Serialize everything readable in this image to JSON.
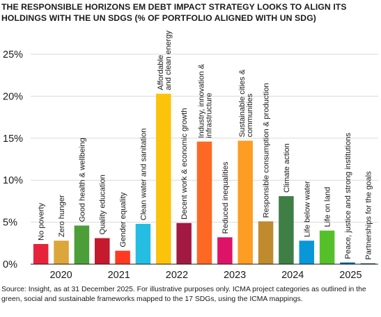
{
  "title": "THE RESPONSIBLE HORIZONS EM DEBT IMPACT STRATEGY LOOKS TO ALIGN ITS HOLDINGS WITH THE UN SDGS (% OF PORTFOLIO ALIGNED WITH UN SDG)",
  "source": "Source: Insight, as at 31 December 2025. For illustrative purposes only. ICMA project categories as outlined in the green, social and sustainable frameworks mapped to the 17 SDGs, using the ICMA mappings.",
  "chart_data": {
    "type": "bar",
    "ylim": [
      0,
      25
    ],
    "yticks": [
      0,
      5,
      10,
      15,
      20,
      25
    ],
    "ytick_labels": [
      "0%",
      "5%",
      "10%",
      "15%",
      "20%",
      "25%"
    ],
    "grid": true,
    "categories": [
      "No poverty",
      "Zero hunger",
      "Good health & wellbeing",
      "Quality education",
      "Gender equality",
      "Clean water and sanitation",
      "Affordable and clean energy",
      "Decent work & economic growth",
      "Industry, innovation & infrastructure",
      "Reduced inequalities",
      "Sustainable cities & communities",
      "Responsible consumption & production",
      "Climate action",
      "Life below water",
      "Life on land",
      "Peace, justice and strong institutions",
      "Partnerships for the goals"
    ],
    "values": [
      2.4,
      2.8,
      4.6,
      3.1,
      1.6,
      4.8,
      20.3,
      4.9,
      14.6,
      3.2,
      14.7,
      5.1,
      8.1,
      2.8,
      4.0,
      0.2,
      0.1
    ],
    "colors": [
      "#e5243b",
      "#dda63a",
      "#4c9f38",
      "#c5192d",
      "#ff3a21",
      "#26bde2",
      "#fcc30b",
      "#a21942",
      "#fd6925",
      "#dd1367",
      "#fd9d24",
      "#bf8b2e",
      "#3f7e44",
      "#0a97d9",
      "#56c02b",
      "#00689d",
      "#19486a"
    ],
    "x_group_labels": [
      "2020",
      "2021",
      "2022",
      "2023",
      "2024",
      "2025"
    ]
  }
}
